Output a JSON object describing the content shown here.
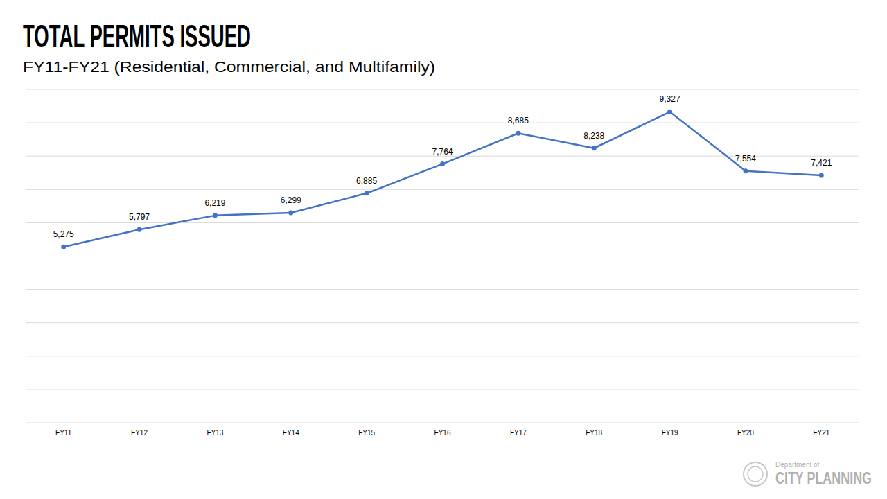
{
  "chart_data": {
    "type": "line",
    "title": "TOTAL PERMITS ISSUED",
    "subtitle": "FY11-FY21 (Residential, Commercial, and Multifamily)",
    "categories": [
      "FY11",
      "FY12",
      "FY13",
      "FY14",
      "FY15",
      "FY16",
      "FY17",
      "FY18",
      "FY19",
      "FY20",
      "FY21"
    ],
    "values": [
      5275,
      5797,
      6219,
      6299,
      6885,
      7764,
      8685,
      8238,
      9327,
      7554,
      7421
    ],
    "value_labels": [
      "5,275",
      "5,797",
      "6,219",
      "6,299",
      "6,885",
      "7,764",
      "8,685",
      "8,238",
      "9,327",
      "7,554",
      "7,421"
    ],
    "color": "#4472c4",
    "marker": "circle",
    "line_style": "solid",
    "ylim": [
      0,
      10000
    ],
    "yticks": [
      0,
      1000,
      2000,
      3000,
      4000,
      5000,
      6000,
      7000,
      8000,
      9000,
      10000
    ],
    "grid": true,
    "data_labels": true,
    "tick_labels": "x",
    "annotations": [
      "Department of",
      "CITY PLANNING"
    ]
  }
}
